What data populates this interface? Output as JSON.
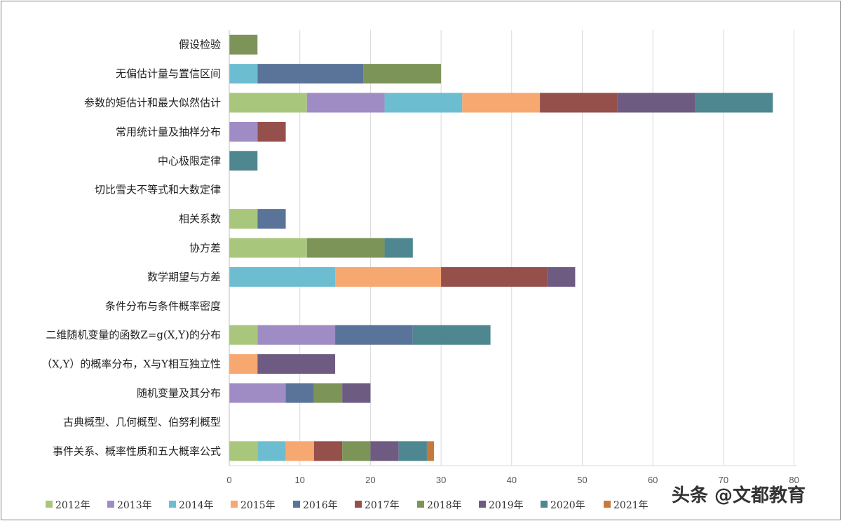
{
  "watermark": "头条 @文都教育",
  "chart_data": {
    "type": "bar",
    "orientation": "horizontal",
    "stacked": true,
    "title": "",
    "xlabel": "",
    "ylabel": "",
    "xlim": [
      0,
      80
    ],
    "xticks": [
      0,
      10,
      20,
      30,
      40,
      50,
      60,
      70,
      80
    ],
    "grid": "vertical",
    "legend_position": "bottom",
    "categories": [
      "假设检验",
      "无偏估计量与置信区间",
      "参数的矩估计和最大似然估计",
      "常用统计量及抽样分布",
      "中心极限定律",
      "切比雪夫不等式和大数定律",
      "相关系数",
      "协方差",
      "数学期望与方差",
      "条件分布与条件概率密度",
      "二维随机变量的函数Z=g(X,Y)的分布",
      "（X,Y）的概率分布，X与Y相互独立性",
      "随机变量及其分布",
      "古典概型、几何概型、伯努利概型",
      "事件关系、概率性质和五大概率公式"
    ],
    "series": [
      {
        "name": "2012年",
        "color": "#a9c77c",
        "values": [
          0,
          0,
          11,
          0,
          0,
          0,
          4,
          11,
          0,
          0,
          4,
          0,
          0,
          0,
          4
        ]
      },
      {
        "name": "2013年",
        "color": "#a08cc4",
        "values": [
          0,
          0,
          11,
          4,
          0,
          0,
          0,
          0,
          0,
          0,
          11,
          0,
          8,
          0,
          0
        ]
      },
      {
        "name": "2014年",
        "color": "#6dbdd1",
        "values": [
          0,
          4,
          11,
          0,
          0,
          0,
          0,
          0,
          15,
          0,
          0,
          0,
          0,
          0,
          4
        ]
      },
      {
        "name": "2015年",
        "color": "#f7a870",
        "values": [
          0,
          0,
          11,
          0,
          0,
          0,
          0,
          0,
          15,
          0,
          0,
          4,
          0,
          0,
          4
        ]
      },
      {
        "name": "2016年",
        "color": "#5a7399",
        "values": [
          0,
          15,
          0,
          0,
          0,
          0,
          4,
          0,
          0,
          0,
          11,
          0,
          4,
          0,
          0
        ]
      },
      {
        "name": "2017年",
        "color": "#95504c",
        "values": [
          0,
          0,
          11,
          4,
          0,
          0,
          0,
          0,
          15,
          0,
          0,
          0,
          0,
          0,
          4
        ]
      },
      {
        "name": "2018年",
        "color": "#7d9459",
        "values": [
          4,
          11,
          0,
          0,
          0,
          0,
          0,
          11,
          0,
          0,
          0,
          0,
          4,
          0,
          4
        ]
      },
      {
        "name": "2019年",
        "color": "#6e5b82",
        "values": [
          0,
          0,
          11,
          0,
          0,
          0,
          0,
          0,
          4,
          0,
          0,
          11,
          4,
          0,
          4
        ]
      },
      {
        "name": "2020年",
        "color": "#4e8790",
        "values": [
          0,
          0,
          11,
          0,
          4,
          0,
          0,
          4,
          0,
          0,
          11,
          0,
          0,
          0,
          4
        ]
      },
      {
        "name": "2021年",
        "color": "#c57a3c",
        "values": [
          0,
          0,
          0,
          0,
          0,
          0,
          0,
          0,
          0,
          0,
          0,
          0,
          0,
          0,
          1
        ]
      }
    ]
  }
}
